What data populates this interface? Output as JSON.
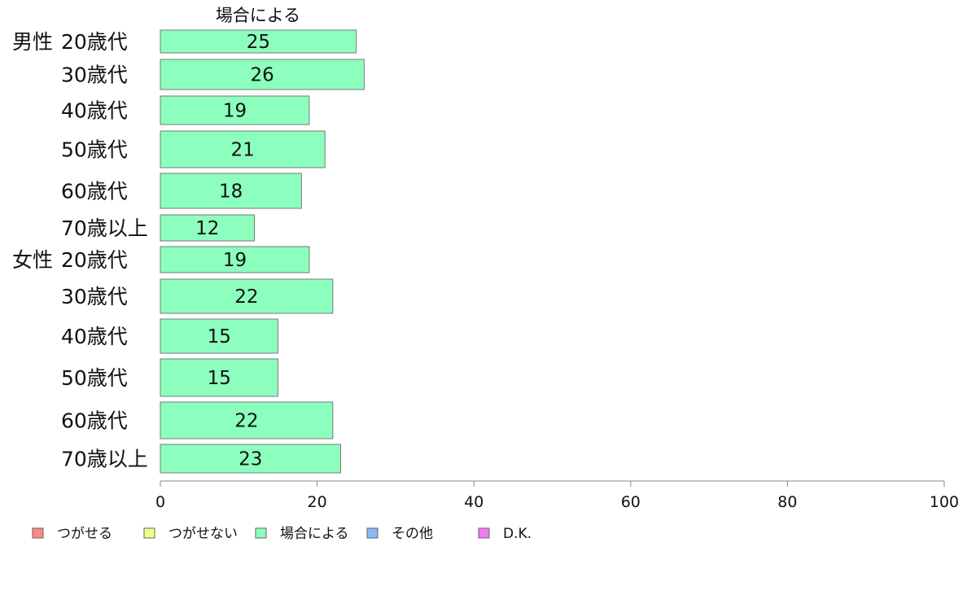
{
  "chart_data": {
    "type": "bar",
    "orientation": "horizontal",
    "series_title": "場合による",
    "groups": [
      {
        "name": "男性",
        "categories": [
          "20歳代",
          "30歳代",
          "40歳代",
          "50歳代",
          "60歳代",
          "70歳以上"
        ],
        "values": [
          25,
          26,
          19,
          21,
          18,
          12
        ]
      },
      {
        "name": "女性",
        "categories": [
          "20歳代",
          "30歳代",
          "40歳代",
          "50歳代",
          "60歳代",
          "70歳以上"
        ],
        "values": [
          19,
          22,
          15,
          15,
          22,
          23
        ]
      }
    ],
    "xlim": [
      0,
      100
    ],
    "xticks": [
      0,
      20,
      40,
      60,
      80,
      100
    ],
    "bar_color": "#8cffbe",
    "grid": false,
    "legend": {
      "placement": "bottom",
      "items": [
        {
          "label": "つがせる",
          "color": "#f88a8a"
        },
        {
          "label": "つがせない",
          "color": "#eeff8a"
        },
        {
          "label": "場合による",
          "color": "#8cffbe"
        },
        {
          "label": "その他",
          "color": "#8ab8f8"
        },
        {
          "label": "D.K.",
          "color": "#f07af8"
        }
      ]
    }
  }
}
